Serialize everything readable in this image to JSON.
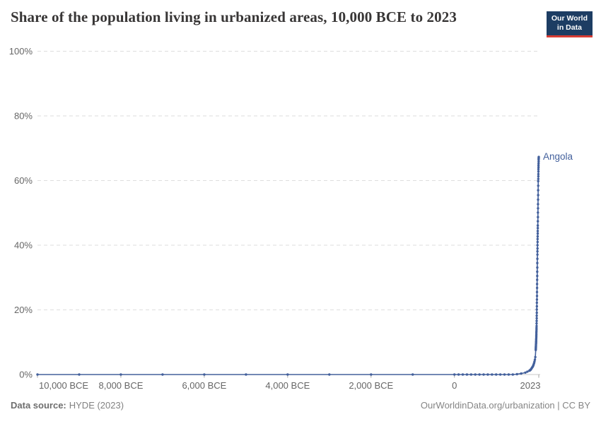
{
  "header": {
    "title": "Share of the population living in urbanized areas, 10,000 BCE to 2023",
    "logo": {
      "line1": "Our World",
      "line2": "in Data",
      "bg": "#1d3d63",
      "accent": "#d73c34"
    }
  },
  "footer": {
    "source_label": "Data source:",
    "source_value": "HYDE (2023)",
    "credit": "OurWorldinData.org/urbanization | CC BY"
  },
  "chart_data": {
    "type": "line",
    "title": "Share of the population living in urbanized areas, 10,000 BCE to 2023",
    "xlabel": "",
    "ylabel": "",
    "xlim": [
      -10000,
      2023
    ],
    "ylim": [
      0,
      100
    ],
    "grid": "horizontal-dashed",
    "legend": "series-end-label",
    "marker": "circle",
    "x_ticks": [
      {
        "value": -10000,
        "label": "10,000 BCE"
      },
      {
        "value": -8000,
        "label": "8,000 BCE"
      },
      {
        "value": -6000,
        "label": "6,000 BCE"
      },
      {
        "value": -4000,
        "label": "4,000 BCE"
      },
      {
        "value": -2000,
        "label": "2,000 BCE"
      },
      {
        "value": 0,
        "label": "0"
      },
      {
        "value": 2023,
        "label": "2023"
      }
    ],
    "y_ticks": [
      {
        "value": 0,
        "label": "0%"
      },
      {
        "value": 20,
        "label": "20%"
      },
      {
        "value": 40,
        "label": "40%"
      },
      {
        "value": 60,
        "label": "60%"
      },
      {
        "value": 80,
        "label": "80%"
      },
      {
        "value": 100,
        "label": "100%"
      }
    ],
    "series": [
      {
        "name": "Angola",
        "color": "#43609c",
        "final_value_pct": 67.3,
        "points": [
          [
            -10000,
            0
          ],
          [
            -9000,
            0
          ],
          [
            -8000,
            0
          ],
          [
            -7000,
            0
          ],
          [
            -6000,
            0
          ],
          [
            -5000,
            0
          ],
          [
            -4000,
            0
          ],
          [
            -3000,
            0
          ],
          [
            -2000,
            0
          ],
          [
            -1000,
            0
          ],
          [
            0,
            0
          ],
          [
            100,
            0
          ],
          [
            200,
            0
          ],
          [
            300,
            0
          ],
          [
            400,
            0
          ],
          [
            500,
            0
          ],
          [
            600,
            0
          ],
          [
            700,
            0
          ],
          [
            800,
            0
          ],
          [
            900,
            0
          ],
          [
            1000,
            0
          ],
          [
            1100,
            0
          ],
          [
            1200,
            0
          ],
          [
            1300,
            0
          ],
          [
            1400,
            0
          ],
          [
            1500,
            0.1
          ],
          [
            1600,
            0.3
          ],
          [
            1700,
            0.6
          ],
          [
            1750,
            0.9
          ],
          [
            1800,
            1.2
          ],
          [
            1810,
            1.3
          ],
          [
            1820,
            1.4
          ],
          [
            1830,
            1.5
          ],
          [
            1840,
            1.7
          ],
          [
            1850,
            1.9
          ],
          [
            1860,
            2.1
          ],
          [
            1870,
            2.3
          ],
          [
            1880,
            2.5
          ],
          [
            1890,
            2.8
          ],
          [
            1900,
            3.1
          ],
          [
            1910,
            3.5
          ],
          [
            1920,
            4.0
          ],
          [
            1930,
            4.6
          ],
          [
            1940,
            5.4
          ],
          [
            1950,
            7.6
          ],
          [
            1951,
            7.9
          ],
          [
            1952,
            8.1
          ],
          [
            1953,
            8.4
          ],
          [
            1954,
            8.6
          ],
          [
            1955,
            8.9
          ],
          [
            1956,
            9.2
          ],
          [
            1957,
            9.5
          ],
          [
            1958,
            9.8
          ],
          [
            1959,
            10.1
          ],
          [
            1960,
            10.4
          ],
          [
            1961,
            10.8
          ],
          [
            1962,
            11.2
          ],
          [
            1963,
            11.6
          ],
          [
            1964,
            12.0
          ],
          [
            1965,
            12.4
          ],
          [
            1966,
            12.9
          ],
          [
            1967,
            13.4
          ],
          [
            1968,
            13.9
          ],
          [
            1969,
            14.4
          ],
          [
            1970,
            15.0
          ],
          [
            1971,
            15.8
          ],
          [
            1972,
            16.6
          ],
          [
            1973,
            17.4
          ],
          [
            1974,
            18.2
          ],
          [
            1975,
            19.1
          ],
          [
            1976,
            20.1
          ],
          [
            1977,
            21.1
          ],
          [
            1978,
            22.2
          ],
          [
            1979,
            23.2
          ],
          [
            1980,
            24.3
          ],
          [
            1981,
            25.5
          ],
          [
            1982,
            26.8
          ],
          [
            1983,
            28.0
          ],
          [
            1984,
            29.3
          ],
          [
            1985,
            30.5
          ],
          [
            1986,
            31.8
          ],
          [
            1987,
            33.1
          ],
          [
            1988,
            34.5
          ],
          [
            1989,
            35.8
          ],
          [
            1990,
            37.1
          ],
          [
            1991,
            38.1
          ],
          [
            1992,
            39.0
          ],
          [
            1993,
            40.0
          ],
          [
            1994,
            41.0
          ],
          [
            1995,
            41.9
          ],
          [
            1996,
            42.7
          ],
          [
            1997,
            43.6
          ],
          [
            1998,
            44.4
          ],
          [
            1999,
            45.3
          ],
          [
            2000,
            46.1
          ],
          [
            2001,
            47.4
          ],
          [
            2002,
            48.7
          ],
          [
            2003,
            50.1
          ],
          [
            2004,
            51.4
          ],
          [
            2005,
            52.7
          ],
          [
            2006,
            54.1
          ],
          [
            2007,
            55.5
          ],
          [
            2008,
            57.0
          ],
          [
            2009,
            58.4
          ],
          [
            2010,
            59.8
          ],
          [
            2011,
            60.5
          ],
          [
            2012,
            61.3
          ],
          [
            2013,
            62.0
          ],
          [
            2014,
            62.8
          ],
          [
            2015,
            63.5
          ],
          [
            2016,
            64.1
          ],
          [
            2017,
            64.7
          ],
          [
            2018,
            65.3
          ],
          [
            2019,
            65.9
          ],
          [
            2020,
            66.5
          ],
          [
            2021,
            66.8
          ],
          [
            2022,
            67.0
          ],
          [
            2023,
            67.3
          ]
        ]
      }
    ]
  }
}
